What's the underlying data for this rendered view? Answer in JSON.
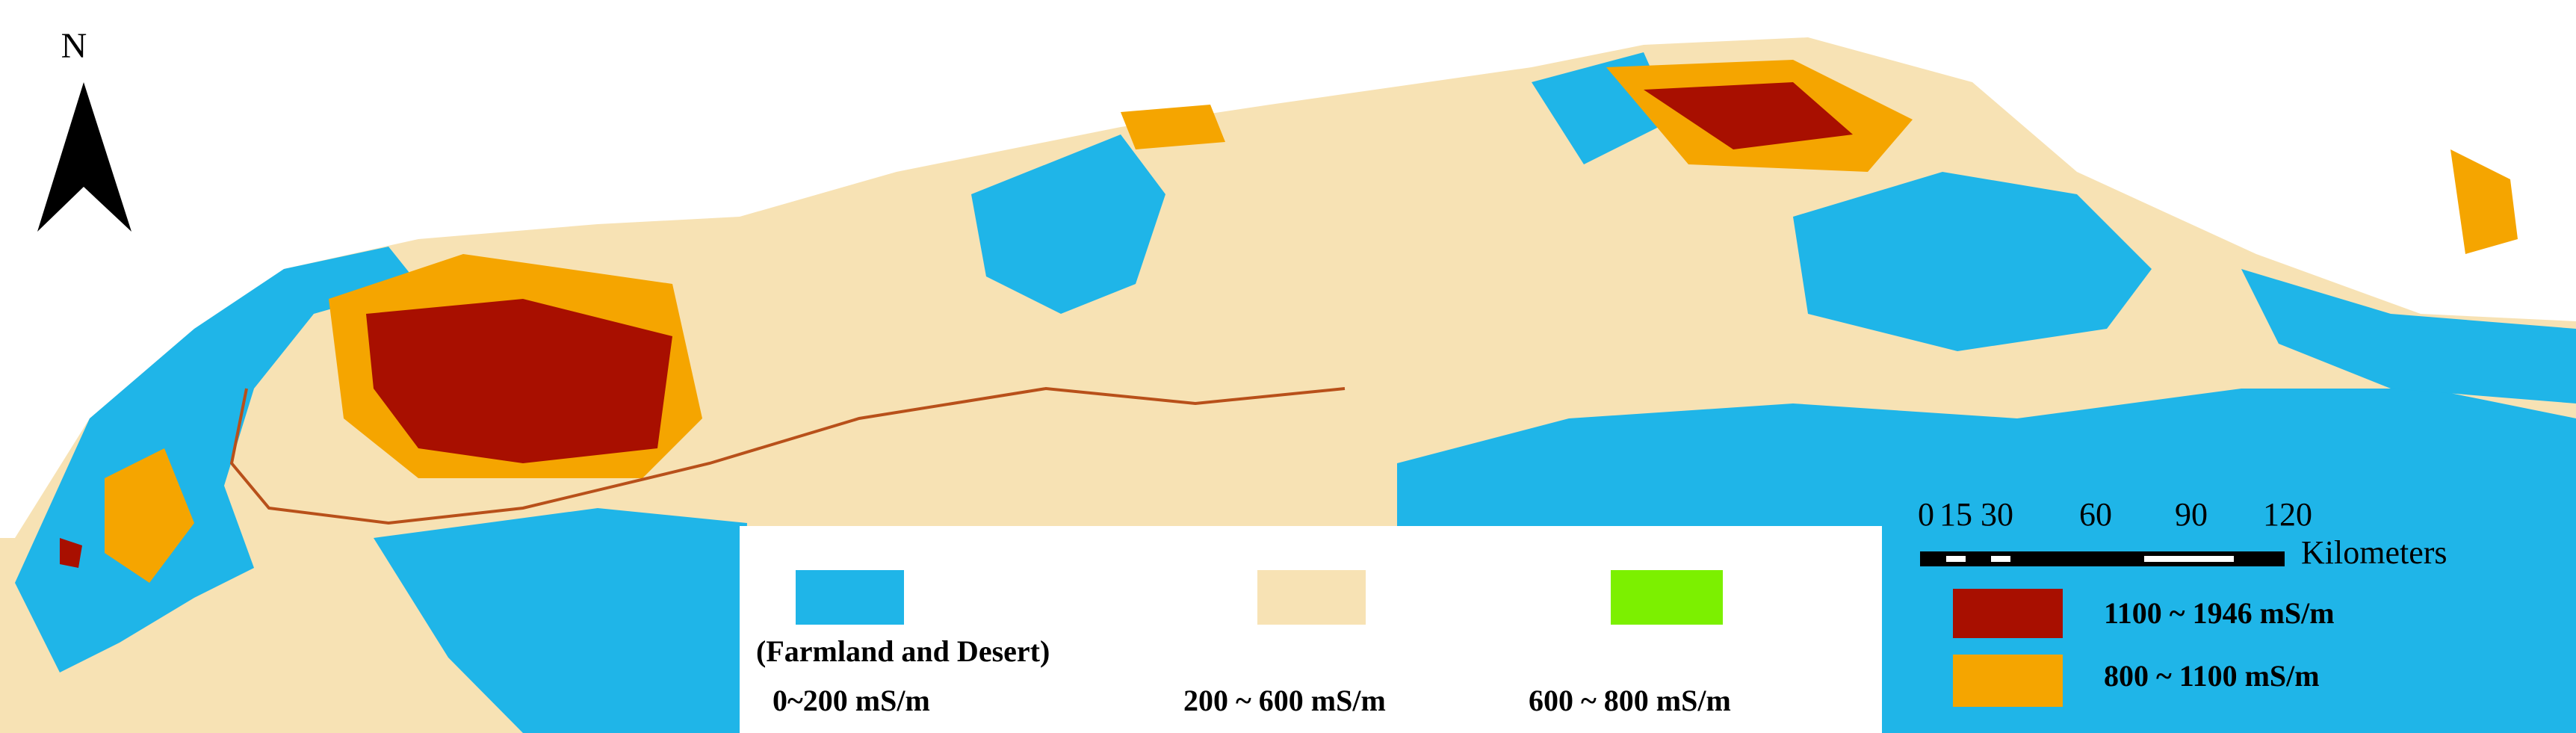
{
  "north_label": "N",
  "scale_bar": {
    "labels": [
      "0",
      "15",
      "30",
      "60",
      "90",
      "120"
    ],
    "unit": "Kilometers"
  },
  "legend": [
    {
      "color": "#1fb5e8",
      "description": "(Farmland and Desert)",
      "label": "0~200 mS/m"
    },
    {
      "color": "#f7e2b4",
      "label": "200 ~ 600 mS/m"
    },
    {
      "color": "#7cf000",
      "label": "600 ~ 800 mS/m"
    },
    {
      "color": "#a80f00",
      "label": "1100 ~ 1946 mS/m"
    },
    {
      "color": "#f5a500",
      "label": "800 ~ 1100 mS/m"
    }
  ]
}
